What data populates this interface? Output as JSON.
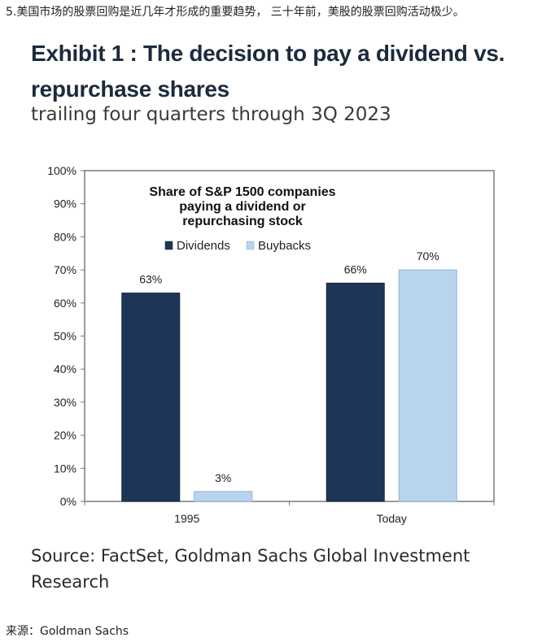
{
  "intro_text": "5.美国市场的股票回购是近几年才形成的重要趋势， 三十年前，美股的股票回购活动极少。",
  "exhibit": {
    "title": "Exhibit 1 : The decision to pay a dividend vs. repurchase shares",
    "subtitle": "trailing four quarters through 3Q 2023"
  },
  "chart_data": {
    "type": "bar",
    "title": "Share of S&P 1500 companies paying a dividend or repurchasing stock",
    "title_lines": [
      "Share of S&P 1500 companies",
      "paying a dividend or",
      "repurchasing stock"
    ],
    "categories": [
      "1995",
      "Today"
    ],
    "series": [
      {
        "name": "Dividends",
        "values": [
          63,
          66
        ],
        "labels": [
          "63%",
          "66%"
        ],
        "color": "#1f3557"
      },
      {
        "name": "Buybacks",
        "values": [
          3,
          70
        ],
        "labels": [
          "3%",
          "70%"
        ],
        "color": "#b8d4ee"
      }
    ],
    "ylim": [
      0,
      100
    ],
    "yticks": [
      "0%",
      "10%",
      "20%",
      "30%",
      "40%",
      "50%",
      "60%",
      "70%",
      "80%",
      "90%",
      "100%"
    ],
    "grid": false,
    "legend_position": "top-center"
  },
  "source": "Source: FactSet, Goldman Sachs Global Investment Research",
  "footnote": "来源：Goldman Sachs"
}
